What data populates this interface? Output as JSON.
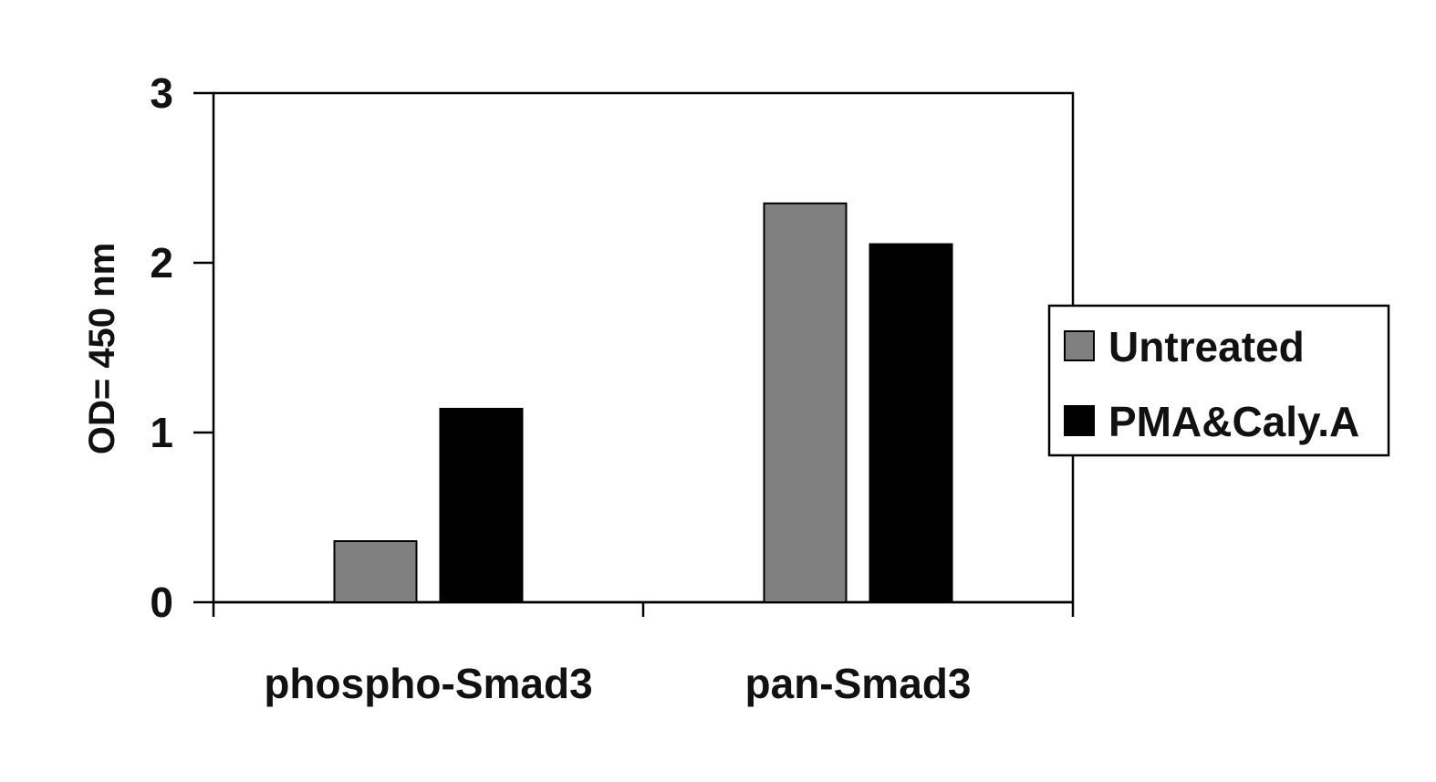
{
  "chart_data": {
    "type": "bar",
    "categories": [
      "phospho-Smad3",
      "pan-Smad3"
    ],
    "series": [
      {
        "name": "Untreated",
        "values": [
          0.36,
          2.35
        ],
        "color": "#808080"
      },
      {
        "name": "PMA&Caly.A",
        "values": [
          1.14,
          2.11
        ],
        "color": "#000000"
      }
    ],
    "title": "",
    "xlabel": "",
    "ylabel": "OD= 450 nm",
    "ylim": [
      0,
      3
    ],
    "yticks": [
      "0",
      "1",
      "2",
      "3"
    ],
    "grid": false,
    "legend_position": "right"
  }
}
